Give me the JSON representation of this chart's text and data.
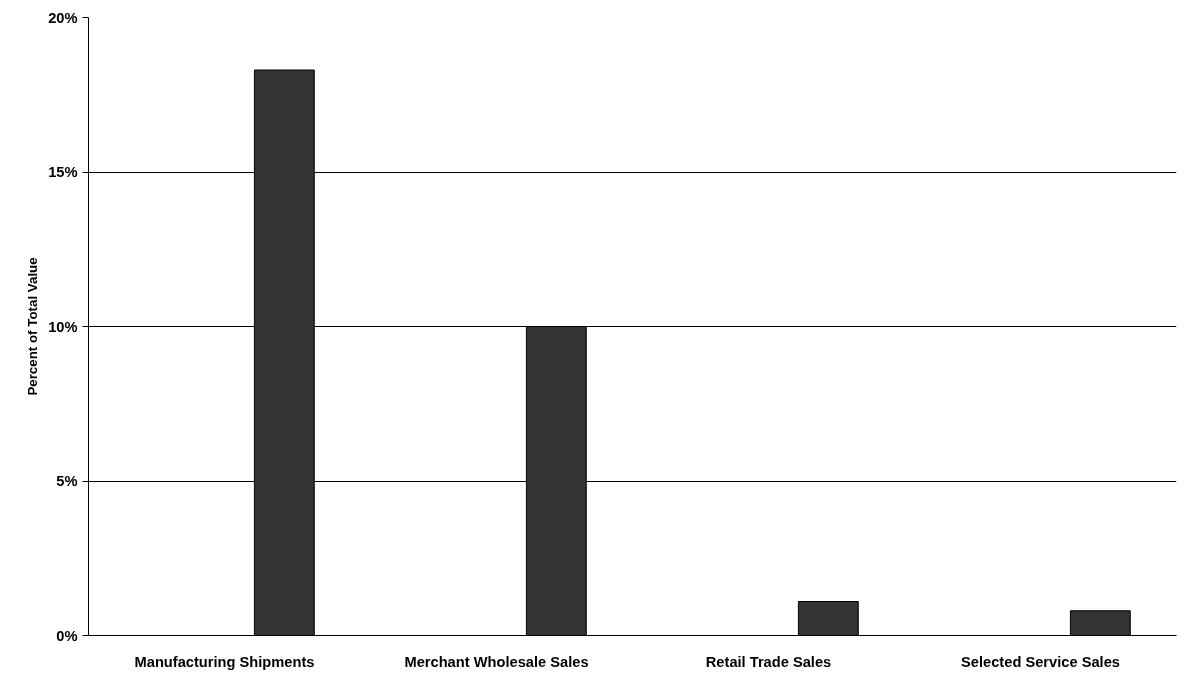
{
  "chart_data": {
    "type": "bar",
    "ylabel": "Percent of Total Value",
    "categories": [
      "Manufacturing Shipments",
      "Merchant Wholesale Sales",
      "Retail Trade Sales",
      "Selected Service Sales"
    ],
    "values": [
      18.3,
      10.0,
      1.1,
      0.8
    ],
    "color": "#333333",
    "ylim": [
      0,
      20
    ],
    "yticks": [
      {
        "value": 0,
        "label": "0%"
      },
      {
        "value": 5,
        "label": "5%"
      },
      {
        "value": 10,
        "label": "10%"
      },
      {
        "value": 15,
        "label": "15%"
      },
      {
        "value": 20,
        "label": "20%"
      }
    ],
    "grid": "y"
  }
}
